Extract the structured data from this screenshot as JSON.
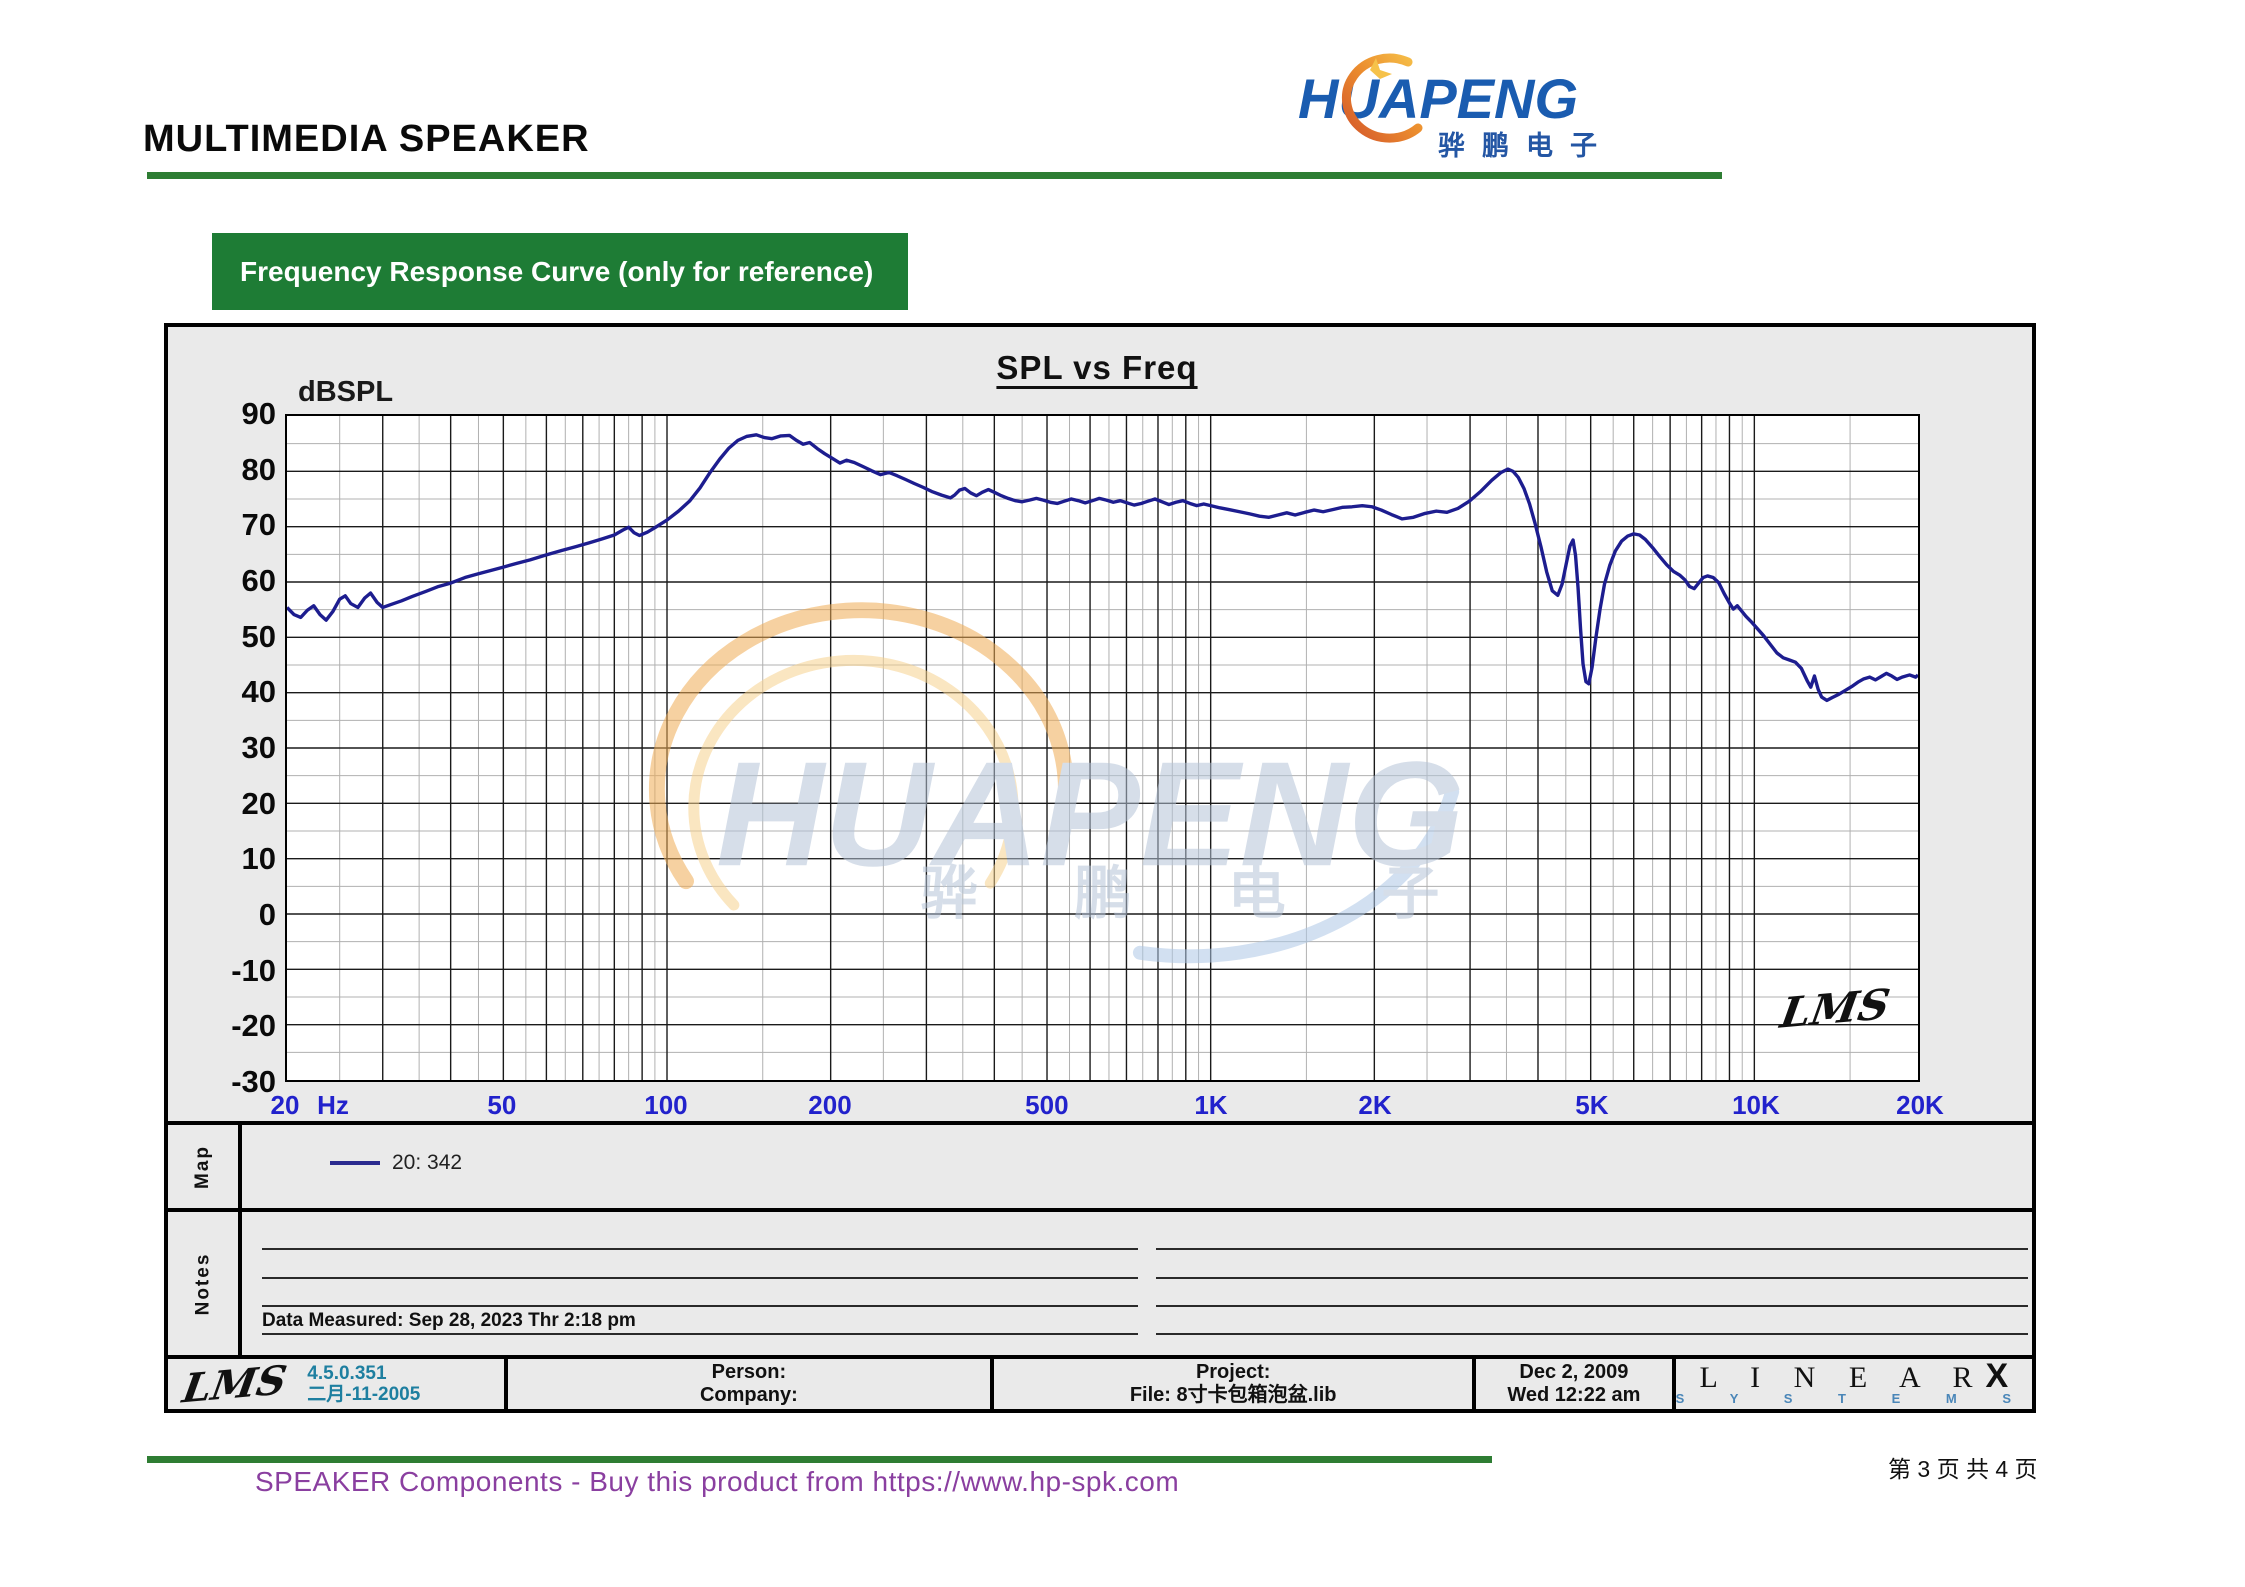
{
  "header": {
    "title": "MULTIMEDIA SPEAKER"
  },
  "logo": {
    "wordmark": "HUAPENG",
    "cjk": "骅鹏电子"
  },
  "banner": {
    "label": "Frequency Response Curve (only for reference)"
  },
  "map": {
    "label": "Map",
    "legend_label": "20: 342"
  },
  "notes": {
    "label": "Notes",
    "data_measured": "Data Measured: Sep 28, 2023  Thr  2:18 pm"
  },
  "footer": {
    "lms": "LMS",
    "version": "4.5.0.351",
    "version_date": "二月-11-2005",
    "person": "Person:",
    "company": "Company:",
    "project": "Project:",
    "file": "File: 8寸卡包箱泡盆.lib",
    "date": "Dec  2, 2009",
    "time": "Wed 12:22 am",
    "brand_top": "L I N E A R",
    "brand_x": "X",
    "brand_bottom": "S Y S T E M S"
  },
  "bottom": {
    "link": "SPEAKER Components - Buy this product from  https://www.hp-spk.com",
    "page": "第 3 页 共 4 页"
  },
  "colors": {
    "green_banner": "#1e7c35",
    "green_rule": "#2e7d33",
    "axis_blue": "#2222cc",
    "curve_navy": "#1d1d8f",
    "teal_version": "#1e7fa0",
    "purple_link": "#8a3fa0",
    "logo_blue": "#1a5cb0",
    "logo_orange": "#e8832a",
    "watermark_blue": "#b5c4d8",
    "watermark_orange": "#f0ad55",
    "grid_major": "#1a1a1a",
    "grid_minor": "#b0b0b0",
    "panel_gray": "#eaeaea"
  },
  "chart_data": {
    "type": "line",
    "title": "SPL vs Freq",
    "y_axis_label": "dBSPL",
    "x_unit": "Hz",
    "xlim": [
      20,
      20000
    ],
    "ylim": [
      -30,
      90
    ],
    "x_scale": "log",
    "grid": "on",
    "legend_position": "map-row-below-chart",
    "y_ticks": [
      90,
      80,
      70,
      60,
      50,
      40,
      30,
      20,
      10,
      0,
      -10,
      -20,
      -30
    ],
    "x_ticks": [
      {
        "f": 20,
        "label": "20"
      },
      {
        "f": 24.5,
        "label": "Hz"
      },
      {
        "f": 50,
        "label": "50"
      },
      {
        "f": 100,
        "label": "100"
      },
      {
        "f": 200,
        "label": "200"
      },
      {
        "f": 500,
        "label": "500"
      },
      {
        "f": 1000,
        "label": "1K"
      },
      {
        "f": 2000,
        "label": "2K"
      },
      {
        "f": 5000,
        "label": "5K"
      },
      {
        "f": 10000,
        "label": "10K"
      },
      {
        "f": 20000,
        "label": "20K"
      }
    ],
    "grid_major_freqs": [
      30,
      40,
      50,
      60,
      70,
      80,
      90,
      100,
      200,
      300,
      400,
      500,
      600,
      700,
      800,
      900,
      1000,
      2000,
      3000,
      4000,
      5000,
      6000,
      7000,
      8000,
      9000,
      10000
    ],
    "grid_minor_freqs": [
      25,
      35,
      45,
      55,
      65,
      75,
      85,
      95,
      150,
      250,
      350,
      450,
      550,
      650,
      750,
      850,
      950,
      1500,
      2500,
      3500,
      4500,
      5500,
      6500,
      7500,
      8500,
      9500,
      15000
    ],
    "grid_major_db": [
      80,
      70,
      60,
      50,
      40,
      30,
      20,
      10,
      0,
      -10,
      -20
    ],
    "grid_minor_db": [
      85,
      75,
      65,
      55,
      45,
      35,
      25,
      15,
      5,
      -5,
      -15,
      -25
    ],
    "watermark": {
      "text": "HUAPENG",
      "subtext": "骅 鹏 电 子"
    },
    "signature": "LMS",
    "series": [
      {
        "name": "20: 342",
        "color": "#1d1d8f",
        "points": [
          [
            20,
            55.4
          ],
          [
            20.6,
            54.1
          ],
          [
            21.2,
            53.6
          ],
          [
            21.8,
            54.9
          ],
          [
            22.4,
            55.7
          ],
          [
            23,
            54.1
          ],
          [
            23.6,
            53.1
          ],
          [
            24.3,
            54.7
          ],
          [
            25,
            56.9
          ],
          [
            25.6,
            57.5
          ],
          [
            26.2,
            56.1
          ],
          [
            27,
            55.4
          ],
          [
            27.8,
            57.1
          ],
          [
            28.5,
            58
          ],
          [
            29.3,
            56.3
          ],
          [
            30,
            55.4
          ],
          [
            31,
            55.9
          ],
          [
            32.5,
            56.6
          ],
          [
            34,
            57.4
          ],
          [
            36,
            58.3
          ],
          [
            38,
            59.2
          ],
          [
            40,
            59.8
          ],
          [
            42.5,
            60.8
          ],
          [
            45,
            61.5
          ],
          [
            47.5,
            62.1
          ],
          [
            50,
            62.7
          ],
          [
            53,
            63.4
          ],
          [
            56,
            64
          ],
          [
            60,
            64.9
          ],
          [
            64,
            65.7
          ],
          [
            68,
            66.4
          ],
          [
            72,
            67.1
          ],
          [
            76,
            67.8
          ],
          [
            80,
            68.5
          ],
          [
            83,
            69.4
          ],
          [
            85,
            69.9
          ],
          [
            87,
            68.9
          ],
          [
            89,
            68.4
          ],
          [
            92,
            69
          ],
          [
            95,
            69.8
          ],
          [
            100,
            71.2
          ],
          [
            105,
            72.8
          ],
          [
            110,
            74.6
          ],
          [
            115,
            77
          ],
          [
            120,
            79.8
          ],
          [
            125,
            82.2
          ],
          [
            130,
            84.2
          ],
          [
            135,
            85.6
          ],
          [
            140,
            86.3
          ],
          [
            146,
            86.6
          ],
          [
            151,
            86.1
          ],
          [
            156,
            85.9
          ],
          [
            162,
            86.4
          ],
          [
            168,
            86.5
          ],
          [
            173,
            85.6
          ],
          [
            178,
            84.9
          ],
          [
            183,
            85.2
          ],
          [
            189,
            84.1
          ],
          [
            195,
            83.2
          ],
          [
            201,
            82.4
          ],
          [
            208,
            81.5
          ],
          [
            214,
            82
          ],
          [
            221,
            81.6
          ],
          [
            229,
            80.9
          ],
          [
            238,
            80.1
          ],
          [
            247,
            79.4
          ],
          [
            256,
            79.8
          ],
          [
            265,
            79.2
          ],
          [
            275,
            78.5
          ],
          [
            285,
            77.8
          ],
          [
            296,
            77.1
          ],
          [
            308,
            76.3
          ],
          [
            320,
            75.7
          ],
          [
            332,
            75.2
          ],
          [
            338,
            75.7
          ],
          [
            345,
            76.6
          ],
          [
            353,
            76.9
          ],
          [
            362,
            76.1
          ],
          [
            371,
            75.6
          ],
          [
            380,
            76.2
          ],
          [
            390,
            76.7
          ],
          [
            400,
            76.2
          ],
          [
            412,
            75.6
          ],
          [
            424,
            75.1
          ],
          [
            437,
            74.7
          ],
          [
            450,
            74.5
          ],
          [
            464,
            74.8
          ],
          [
            478,
            75.1
          ],
          [
            492,
            74.8
          ],
          [
            507,
            74.4
          ],
          [
            522,
            74.2
          ],
          [
            538,
            74.6
          ],
          [
            554,
            75
          ],
          [
            571,
            74.7
          ],
          [
            588,
            74.3
          ],
          [
            606,
            74.7
          ],
          [
            624,
            75.1
          ],
          [
            643,
            74.8
          ],
          [
            662,
            74.4
          ],
          [
            682,
            74.7
          ],
          [
            702,
            74.3
          ],
          [
            723,
            73.9
          ],
          [
            745,
            74.2
          ],
          [
            767,
            74.6
          ],
          [
            790,
            75
          ],
          [
            814,
            74.5
          ],
          [
            838,
            74
          ],
          [
            863,
            74.4
          ],
          [
            889,
            74.7
          ],
          [
            916,
            74.2
          ],
          [
            943,
            73.8
          ],
          [
            971,
            74.1
          ],
          [
            1000,
            73.8
          ],
          [
            1040,
            73.4
          ],
          [
            1080,
            73.1
          ],
          [
            1130,
            72.7
          ],
          [
            1180,
            72.3
          ],
          [
            1230,
            71.9
          ],
          [
            1280,
            71.7
          ],
          [
            1330,
            72.1
          ],
          [
            1380,
            72.5
          ],
          [
            1430,
            72.1
          ],
          [
            1490,
            72.6
          ],
          [
            1550,
            73
          ],
          [
            1610,
            72.7
          ],
          [
            1680,
            73.1
          ],
          [
            1750,
            73.5
          ],
          [
            1820,
            73.6
          ],
          [
            1900,
            73.8
          ],
          [
            1980,
            73.6
          ],
          [
            2060,
            73
          ],
          [
            2150,
            72.2
          ],
          [
            2250,
            71.4
          ],
          [
            2360,
            71.7
          ],
          [
            2480,
            72.4
          ],
          [
            2600,
            72.8
          ],
          [
            2720,
            72.6
          ],
          [
            2850,
            73.3
          ],
          [
            2990,
            74.6
          ],
          [
            3140,
            76.4
          ],
          [
            3290,
            78.4
          ],
          [
            3420,
            79.8
          ],
          [
            3520,
            80.4
          ],
          [
            3600,
            80
          ],
          [
            3680,
            78.9
          ],
          [
            3770,
            76.9
          ],
          [
            3860,
            74.1
          ],
          [
            3950,
            70.6
          ],
          [
            4050,
            66.4
          ],
          [
            4150,
            61.8
          ],
          [
            4250,
            58.4
          ],
          [
            4350,
            57.6
          ],
          [
            4430,
            59.6
          ],
          [
            4510,
            63.4
          ],
          [
            4580,
            66.5
          ],
          [
            4640,
            67.6
          ],
          [
            4690,
            64.8
          ],
          [
            4740,
            59
          ],
          [
            4790,
            51.6
          ],
          [
            4840,
            45.2
          ],
          [
            4900,
            42
          ],
          [
            4960,
            41.6
          ],
          [
            5030,
            44.6
          ],
          [
            5110,
            49.8
          ],
          [
            5200,
            55
          ],
          [
            5300,
            59.6
          ],
          [
            5420,
            63
          ],
          [
            5550,
            65.6
          ],
          [
            5700,
            67.4
          ],
          [
            5850,
            68.3
          ],
          [
            6000,
            68.7
          ],
          [
            6150,
            68.5
          ],
          [
            6300,
            67.7
          ],
          [
            6500,
            66.2
          ],
          [
            6700,
            64.6
          ],
          [
            6900,
            63.1
          ],
          [
            7100,
            61.9
          ],
          [
            7300,
            61.2
          ],
          [
            7450,
            60.4
          ],
          [
            7600,
            59.2
          ],
          [
            7750,
            58.8
          ],
          [
            7900,
            59.8
          ],
          [
            8050,
            60.8
          ],
          [
            8200,
            61.1
          ],
          [
            8400,
            60.8
          ],
          [
            8600,
            59.9
          ],
          [
            8800,
            57.9
          ],
          [
            9000,
            56.2
          ],
          [
            9150,
            55.1
          ],
          [
            9300,
            55.7
          ],
          [
            9450,
            54.9
          ],
          [
            9650,
            53.8
          ],
          [
            9850,
            52.9
          ],
          [
            10100,
            51.7
          ],
          [
            10400,
            50.3
          ],
          [
            10700,
            48.7
          ],
          [
            11000,
            47.2
          ],
          [
            11300,
            46.3
          ],
          [
            11600,
            45.9
          ],
          [
            11900,
            45.5
          ],
          [
            12200,
            44.4
          ],
          [
            12500,
            42.2
          ],
          [
            12700,
            41
          ],
          [
            12900,
            43
          ],
          [
            13100,
            40.6
          ],
          [
            13300,
            39.2
          ],
          [
            13600,
            38.6
          ],
          [
            13900,
            39.1
          ],
          [
            14300,
            39.7
          ],
          [
            14700,
            40.4
          ],
          [
            15100,
            41.1
          ],
          [
            15500,
            41.9
          ],
          [
            15900,
            42.5
          ],
          [
            16300,
            42.8
          ],
          [
            16700,
            42.3
          ],
          [
            17100,
            42.9
          ],
          [
            17500,
            43.5
          ],
          [
            17900,
            43
          ],
          [
            18300,
            42.4
          ],
          [
            18700,
            42.8
          ],
          [
            19300,
            43.2
          ],
          [
            19800,
            42.8
          ],
          [
            20000,
            43.2
          ]
        ]
      }
    ]
  }
}
